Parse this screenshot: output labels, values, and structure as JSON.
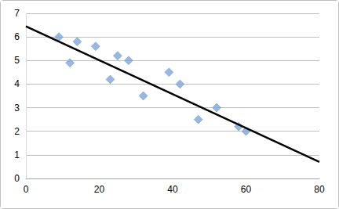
{
  "chart_data": {
    "type": "scatter",
    "series": [
      {
        "type": "scatter",
        "color": "#7fa6d9",
        "marker": "diamond",
        "x": [
          9,
          12,
          14,
          19,
          23,
          25,
          28,
          32,
          39,
          42,
          47,
          52,
          58,
          60
        ],
        "values": [
          6.0,
          4.9,
          5.8,
          5.6,
          4.2,
          5.2,
          5.0,
          3.5,
          4.5,
          4.0,
          2.5,
          3.0,
          2.2,
          2.0
        ]
      },
      {
        "type": "line",
        "color": "#000000",
        "line_style": "solid",
        "x": [
          0,
          80
        ],
        "values": [
          6.45,
          0.7
        ]
      }
    ],
    "xlim": [
      0,
      80
    ],
    "xticks": [
      0,
      20,
      40,
      60,
      80
    ],
    "ylim": [
      0,
      7
    ],
    "yticks": [
      0,
      1,
      2,
      3,
      4,
      5,
      6,
      7
    ],
    "grid": true
  }
}
